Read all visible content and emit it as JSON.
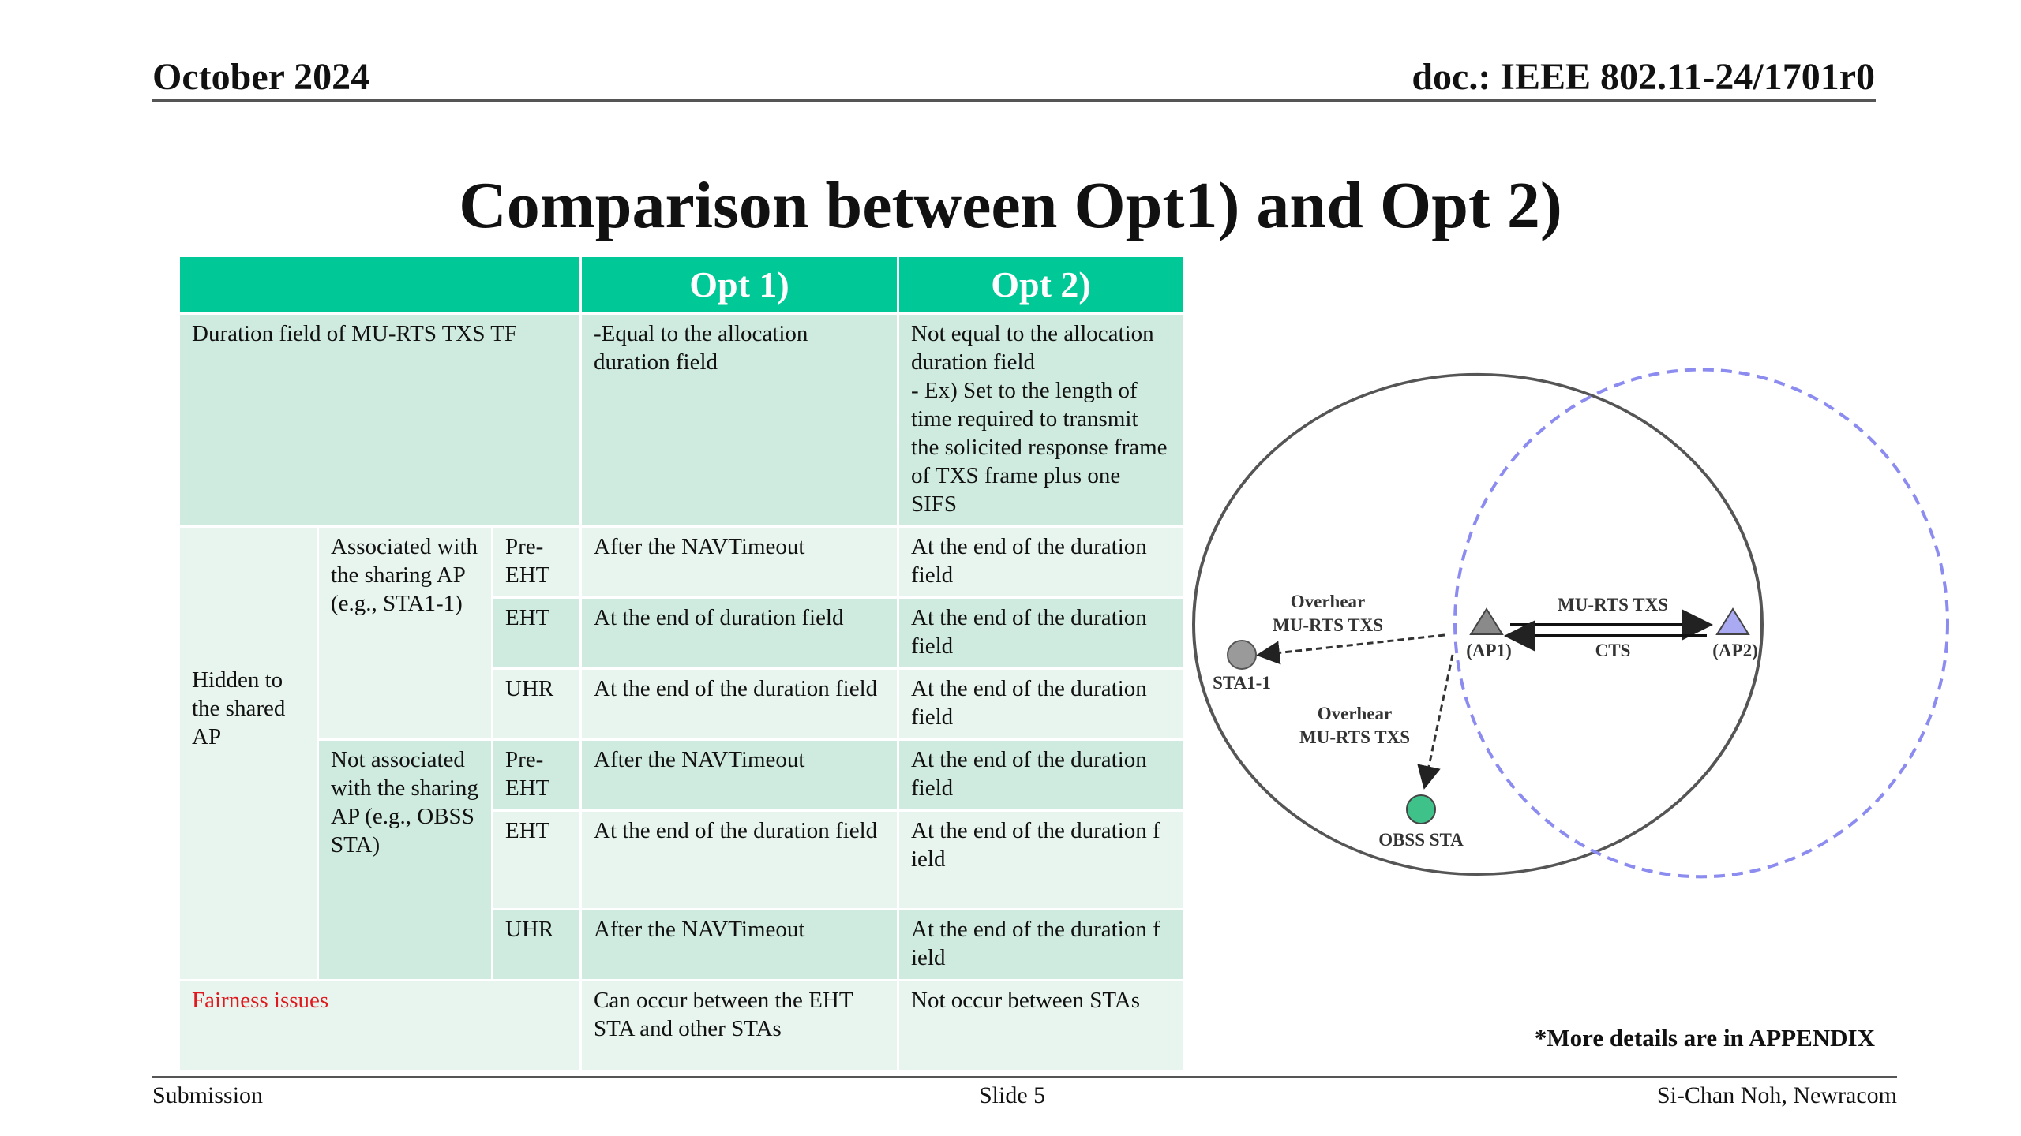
{
  "header": {
    "date": "October 2024",
    "doc": "doc.: IEEE 802.11-24/1701r0"
  },
  "title": "Comparison between Opt1) and Opt 2)",
  "table": {
    "col_headers": [
      "Opt 1)",
      "Opt 2)"
    ],
    "duration_row": {
      "label": "Duration field of MU-RTS TXS TF",
      "opt1": "-Equal to the allocation duration field",
      "opt2_line1": "Not equal to the allocation duration field",
      "opt2_line2": "- Ex) Set to the length of time required to transmit the solicited response frame of TXS frame plus one SIFS"
    },
    "hidden_label": "Hidden to the shared AP",
    "assoc_label": "Associated with the sharing AP (e.g., STA1-1)",
    "notassoc_label": "Not associated with the sharing AP (e.g., OBSS STA)",
    "rows": [
      {
        "type": "Pre-EHT",
        "opt1": "After the NAVTimeout",
        "opt2": "At the end of the duration field"
      },
      {
        "type": "EHT",
        "opt1": "At the end of duration field",
        "opt2": "At the end of the duration field"
      },
      {
        "type": "UHR",
        "opt1": "At the end of the duration field",
        "opt2": "At the end of the duration field"
      },
      {
        "type": "Pre-EHT",
        "opt1": "After the NAVTimeout",
        "opt2": "At the end of the duration field"
      },
      {
        "type": "EHT",
        "opt1": "At the end of the duration field",
        "opt2": "At the end of the duration f ield"
      },
      {
        "type": "UHR",
        "opt1": "After the NAVTimeout",
        "opt2": "At the end of the duration f ield"
      }
    ],
    "fairness": {
      "label": "Fairness issues",
      "opt1": "Can occur between the EHT STA and other STAs",
      "opt2": "Not occur between STAs"
    }
  },
  "diagram": {
    "overhear1": [
      "Overhear",
      "MU-RTS TXS"
    ],
    "overhear2": [
      "Overhear",
      "MU-RTS TXS"
    ],
    "mu_rts": "MU-RTS TXS",
    "cts": "CTS",
    "ap1": "(AP1)",
    "ap2": "(AP2)",
    "sta1": "STA1-1",
    "obss": "OBSS STA",
    "colors": {
      "circle1": "#555555",
      "circle2": "#8c8cf0",
      "sta1": "#9a9a9a",
      "obss": "#3ec28a",
      "ap1": "#8a8a8a",
      "ap2": "#aaaaf2"
    }
  },
  "note": "*More details are in APPENDIX",
  "footer": {
    "left": "Submission",
    "center": "Slide 5",
    "right": "Si-Chan Noh, Newracom"
  }
}
